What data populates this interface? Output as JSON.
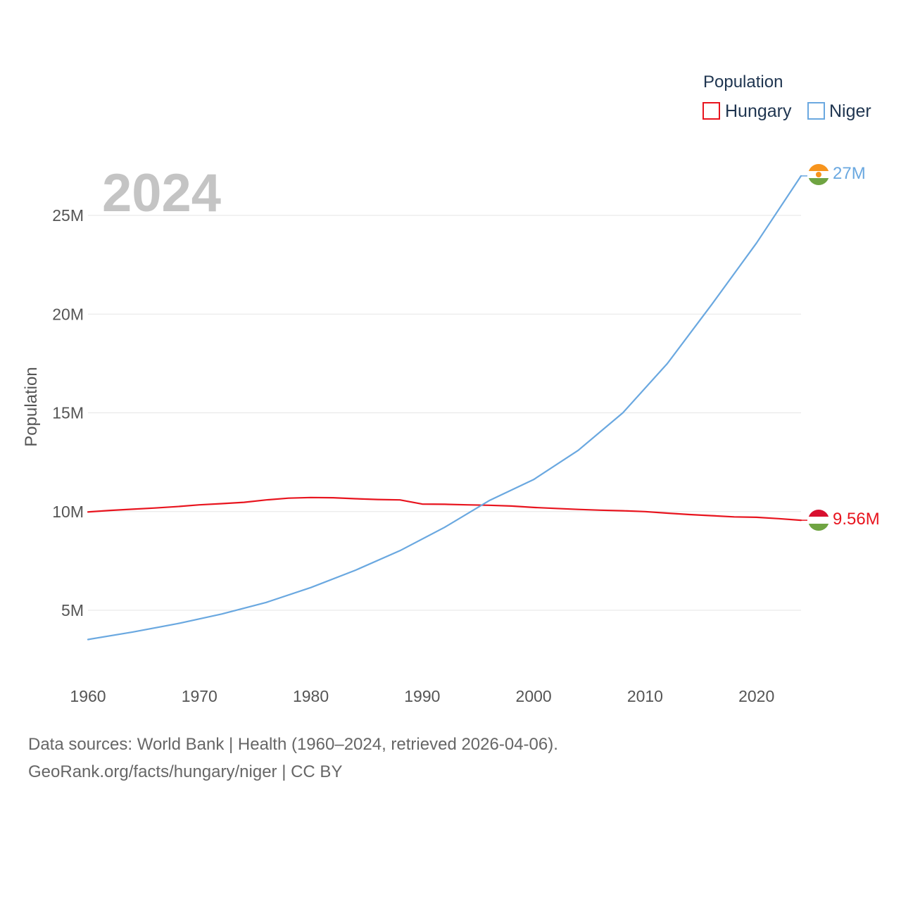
{
  "chart_data": {
    "type": "line",
    "legend_title": "Population",
    "year_label": "2024",
    "ylabel": "Population",
    "xlim": [
      1960,
      2024
    ],
    "ylim": [
      2000000,
      27500000
    ],
    "x_ticks": [
      1960,
      1970,
      1980,
      1990,
      2000,
      2010,
      2020
    ],
    "y_ticks": [
      {
        "value": 5000000,
        "label": "5M"
      },
      {
        "value": 10000000,
        "label": "10M"
      },
      {
        "value": 15000000,
        "label": "15M"
      },
      {
        "value": 20000000,
        "label": "20M"
      },
      {
        "value": 25000000,
        "label": "25M"
      }
    ],
    "series": [
      {
        "name": "Hungary",
        "color": "#e8141e",
        "end_label": "9.56M",
        "flag": "hungary-flag",
        "x": [
          1960,
          1962,
          1964,
          1966,
          1968,
          1970,
          1972,
          1974,
          1976,
          1978,
          1980,
          1982,
          1984,
          1986,
          1988,
          1990,
          1992,
          1994,
          1996,
          1998,
          2000,
          2002,
          2004,
          2006,
          2008,
          2010,
          2012,
          2014,
          2016,
          2018,
          2020,
          2022,
          2024
        ],
        "values": [
          9980000,
          10060000,
          10120000,
          10180000,
          10250000,
          10340000,
          10400000,
          10470000,
          10590000,
          10680000,
          10710000,
          10700000,
          10650000,
          10610000,
          10590000,
          10380000,
          10370000,
          10340000,
          10320000,
          10280000,
          10210000,
          10160000,
          10110000,
          10070000,
          10040000,
          10000000,
          9920000,
          9850000,
          9790000,
          9730000,
          9710000,
          9640000,
          9560000
        ]
      },
      {
        "name": "Niger",
        "color": "#6aa8e0",
        "end_label": "27M",
        "flag": "niger-flag",
        "x": [
          1960,
          1964,
          1968,
          1972,
          1976,
          1980,
          1984,
          1988,
          1992,
          1996,
          2000,
          2004,
          2008,
          2012,
          2016,
          2020,
          2024
        ],
        "values": [
          3520000,
          3900000,
          4320000,
          4810000,
          5400000,
          6150000,
          7030000,
          8020000,
          9200000,
          10550000,
          11620000,
          13100000,
          15000000,
          17500000,
          20500000,
          23600000,
          27000000
        ]
      }
    ]
  },
  "footer": {
    "sources": "Data sources: World Bank | Health (1960–2024, retrieved 2026-04-06).",
    "url": "GeoRank.org/facts/hungary/niger | CC BY"
  }
}
